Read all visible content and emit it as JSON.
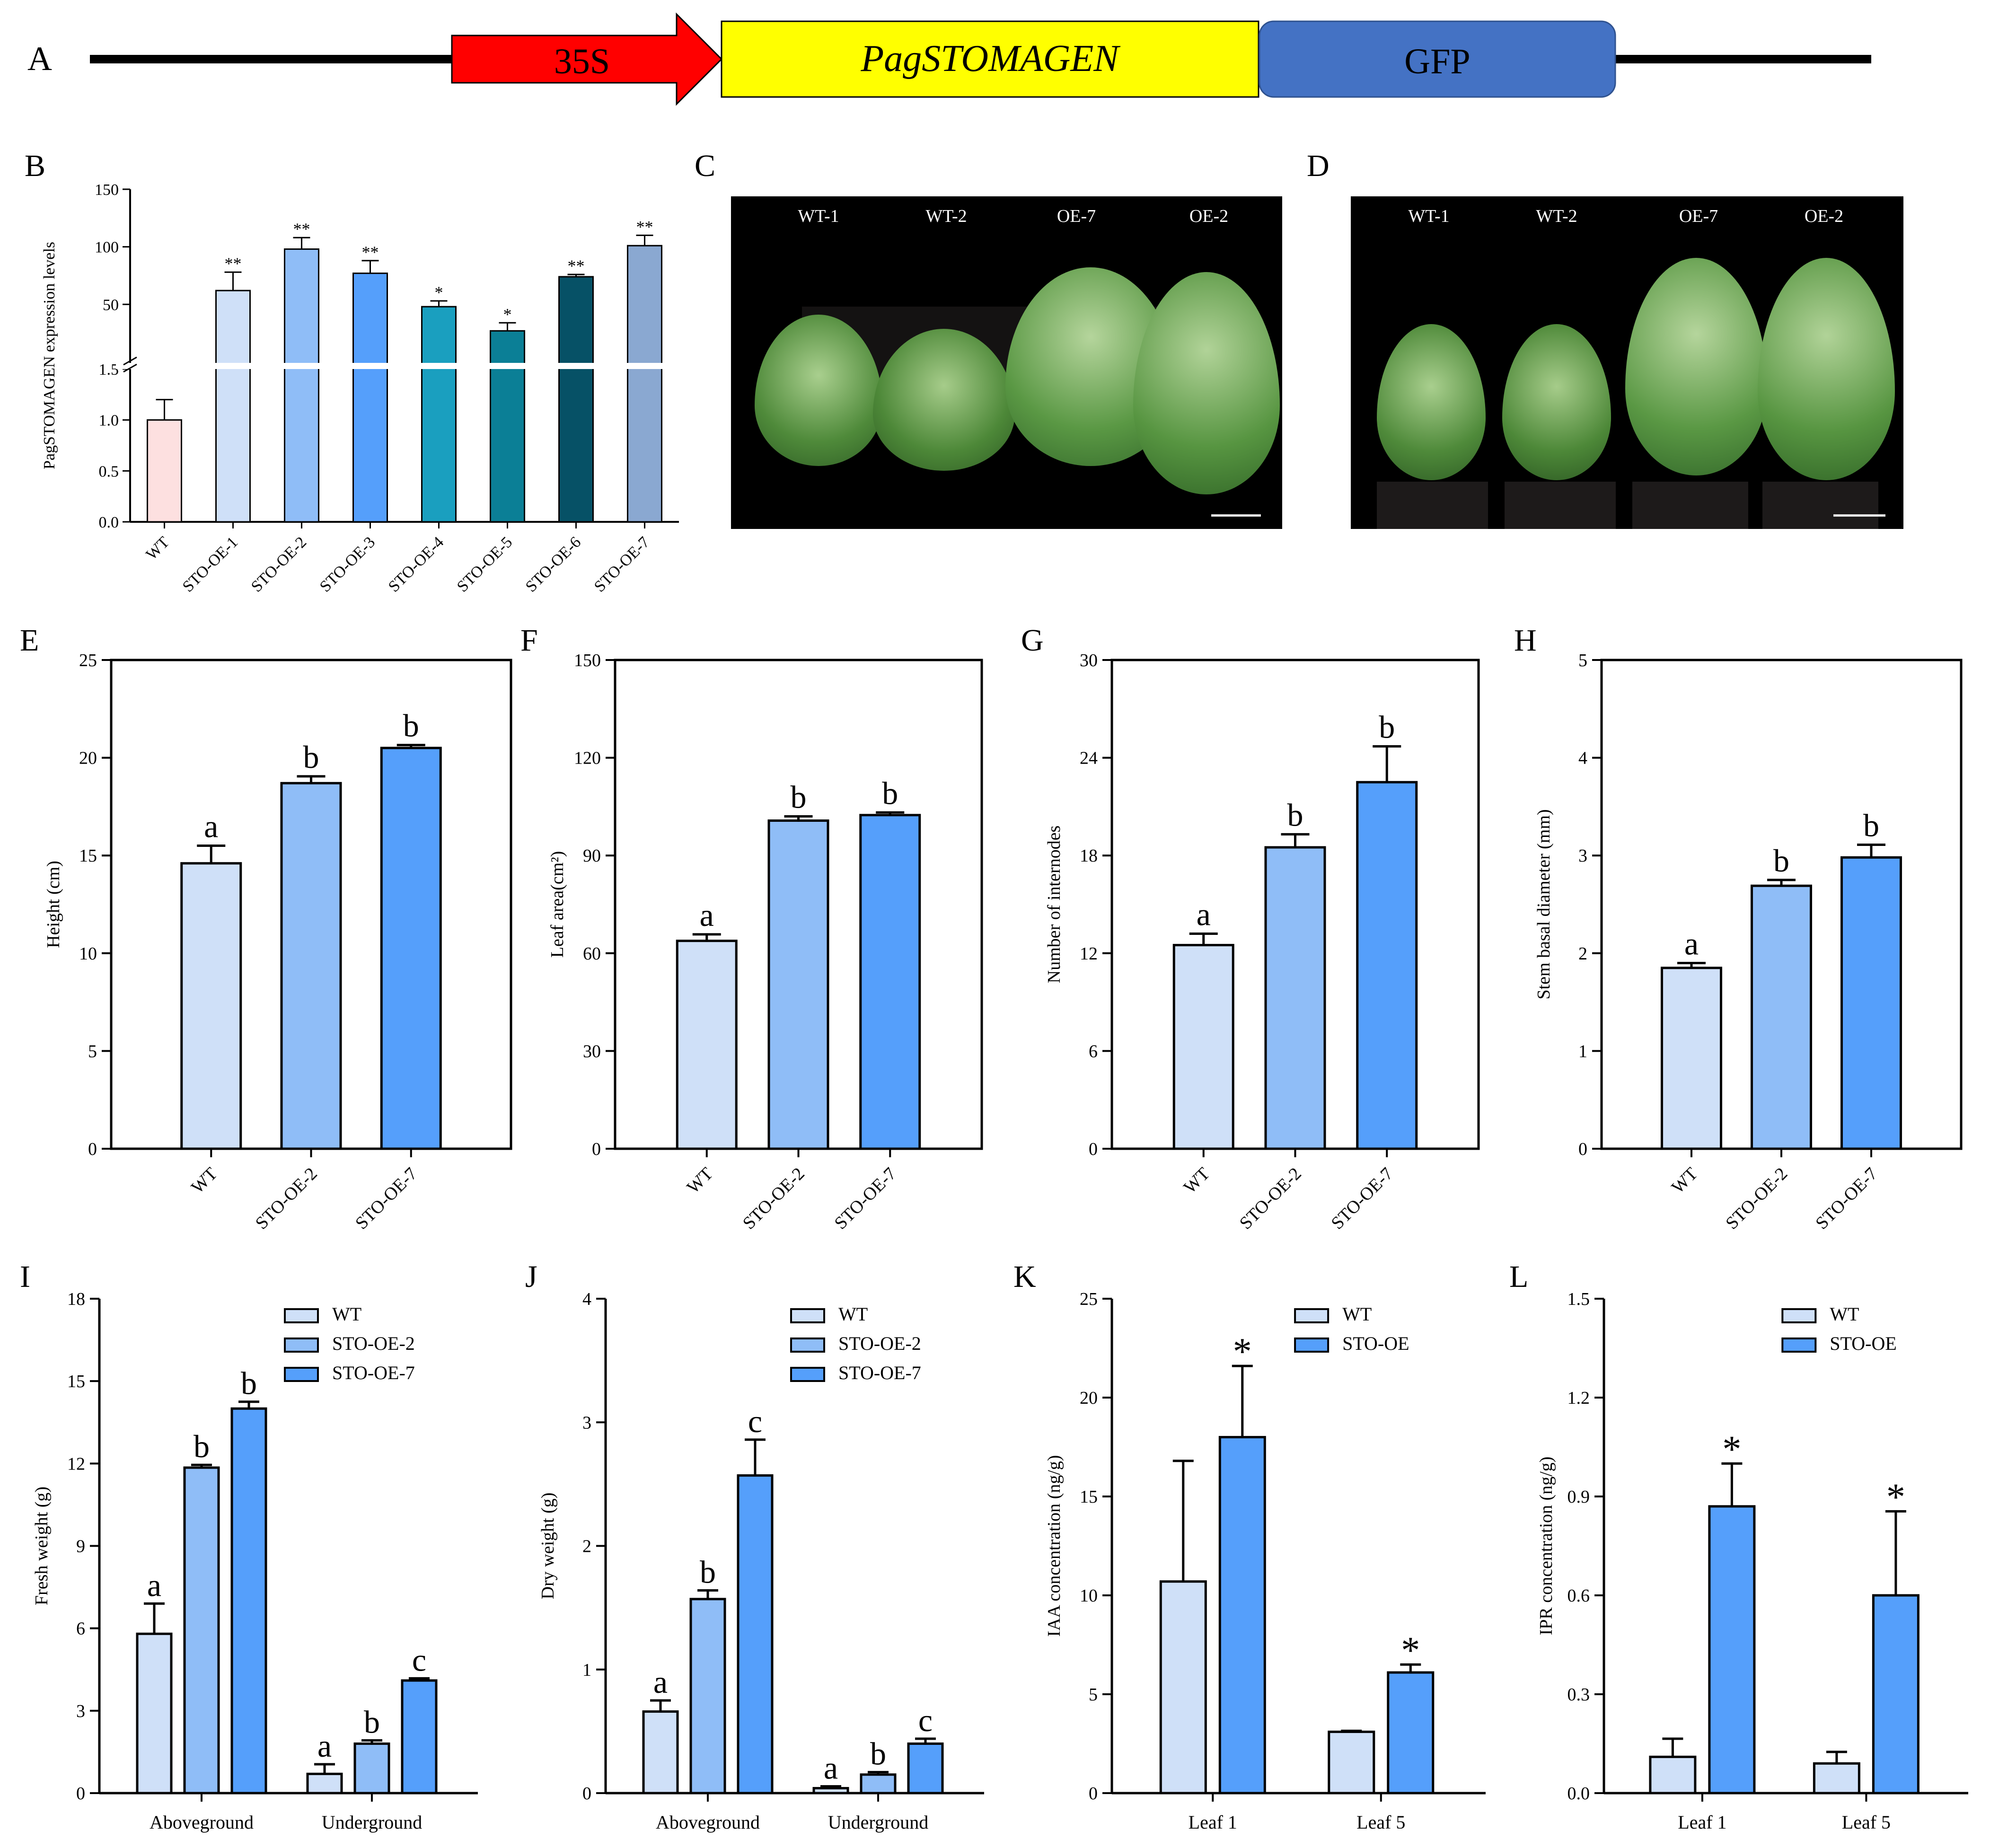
{
  "panel_letters": {
    "A": "A",
    "B": "B",
    "C": "C",
    "D": "D",
    "E": "E",
    "F": "F",
    "G": "G",
    "H": "H",
    "I": "I",
    "J": "J",
    "K": "K",
    "L": "L"
  },
  "construct": {
    "promoter": "35S",
    "gene": "PagSTOMAGEN",
    "tag": "GFP",
    "colors": {
      "promoter": "#ff0000",
      "gene": "#ffff00",
      "tag": "#4472c4"
    }
  },
  "photos": {
    "C": {
      "labels": [
        "WT-1",
        "WT-2",
        "OE-7",
        "OE-2"
      ]
    },
    "D": {
      "labels": [
        "WT-1",
        "WT-2",
        "OE-7",
        "OE-2"
      ]
    }
  },
  "colors": {
    "wt": "#cfe0f8",
    "oe2": "#8fbdf7",
    "oe7": "#559ffb"
  },
  "chart_data": [
    {
      "id": "B",
      "type": "bar",
      "ylabel": "PagSTOMAGEN expression levels",
      "axis_break": true,
      "lower_ticks": [
        "0.0",
        "0.5",
        "1.0",
        "1.5"
      ],
      "upper_ticks": [
        "50",
        "100",
        "150"
      ],
      "categories": [
        "WT",
        "STO-OE-1",
        "STO-OE-2",
        "STO-OE-3",
        "STO-OE-4",
        "STO-OE-5",
        "STO-OE-6",
        "STO-OE-7"
      ],
      "values": [
        1.0,
        62,
        98,
        77,
        48,
        27,
        74,
        101
      ],
      "errors": [
        0.2,
        16,
        10,
        11,
        5,
        7,
        2,
        9
      ],
      "significance": [
        "",
        "**",
        "**",
        "**",
        "*",
        "*",
        "**",
        "**"
      ],
      "bar_colors": [
        "#fde0e0",
        "#cfe0f8",
        "#8fbdf7",
        "#559ffb",
        "#1a9fbf",
        "#0b7f96",
        "#065166",
        "#8aa8d1"
      ]
    },
    {
      "id": "E",
      "type": "bar",
      "ylabel": "Height (cm)",
      "ylim": [
        0,
        25
      ],
      "ticks": [
        0,
        5,
        10,
        15,
        20,
        25
      ],
      "categories": [
        "WT",
        "STO-OE-2",
        "STO-OE-7"
      ],
      "values": [
        14.6,
        18.7,
        20.5
      ],
      "errors": [
        0.9,
        0.35,
        0.15
      ],
      "letters": [
        "a",
        "b",
        "b"
      ]
    },
    {
      "id": "F",
      "type": "bar",
      "ylabel": "Leaf area(cm²)",
      "ylim": [
        0,
        150
      ],
      "ticks": [
        0,
        30,
        60,
        90,
        120,
        150
      ],
      "categories": [
        "WT",
        "STO-OE-2",
        "STO-OE-7"
      ],
      "values": [
        63.8,
        100.7,
        102.4
      ],
      "errors": [
        2.0,
        1.3,
        0.8
      ],
      "letters": [
        "a",
        "b",
        "b"
      ]
    },
    {
      "id": "G",
      "type": "bar",
      "ylabel": "Number of internodes",
      "ylim": [
        0,
        30
      ],
      "ticks": [
        0,
        6,
        12,
        18,
        24,
        30
      ],
      "categories": [
        "WT",
        "STO-OE-2",
        "STO-OE-7"
      ],
      "values": [
        12.5,
        18.5,
        22.5
      ],
      "errors": [
        0.7,
        0.8,
        2.2
      ],
      "letters": [
        "a",
        "b",
        "b"
      ]
    },
    {
      "id": "H",
      "type": "bar",
      "ylabel": "Stem basal diameter (mm)",
      "ylim": [
        0,
        5
      ],
      "ticks": [
        0,
        1,
        2,
        3,
        4,
        5
      ],
      "categories": [
        "WT",
        "STO-OE-2",
        "STO-OE-7"
      ],
      "values": [
        1.85,
        2.69,
        2.98
      ],
      "errors": [
        0.05,
        0.06,
        0.13
      ],
      "letters": [
        "a",
        "b",
        "b"
      ]
    },
    {
      "id": "I",
      "type": "bar",
      "ylabel": "Fresh weight (g)",
      "ylim": [
        0,
        18
      ],
      "ticks": [
        0,
        3,
        6,
        9,
        12,
        15,
        18
      ],
      "categories": [
        "Aboveground",
        "Underground"
      ],
      "legend": [
        "WT",
        "STO-OE-2",
        "STO-OE-7"
      ],
      "series": [
        {
          "name": "WT",
          "values": [
            5.8,
            0.7
          ],
          "errors": [
            1.1,
            0.35
          ],
          "letters": [
            "a",
            "a"
          ]
        },
        {
          "name": "STO-OE-2",
          "values": [
            11.85,
            1.8
          ],
          "errors": [
            0.1,
            0.12
          ],
          "letters": [
            "b",
            "b"
          ]
        },
        {
          "name": "STO-OE-7",
          "values": [
            14.0,
            4.1
          ],
          "errors": [
            0.25,
            0.08
          ],
          "letters": [
            "b",
            "c"
          ]
        }
      ]
    },
    {
      "id": "J",
      "type": "bar",
      "ylabel": "Dry weight (g)",
      "ylim": [
        0,
        4
      ],
      "ticks": [
        0,
        1,
        2,
        3,
        4
      ],
      "categories": [
        "Aboveground",
        "Underground"
      ],
      "legend": [
        "WT",
        "STO-OE-2",
        "STO-OE-7"
      ],
      "series": [
        {
          "name": "WT",
          "values": [
            0.66,
            0.04
          ],
          "errors": [
            0.09,
            0.015
          ],
          "letters": [
            "a",
            "a"
          ]
        },
        {
          "name": "STO-OE-2",
          "values": [
            1.57,
            0.15
          ],
          "errors": [
            0.07,
            0.02
          ],
          "letters": [
            "b",
            "b"
          ]
        },
        {
          "name": "STO-OE-7",
          "values": [
            2.57,
            0.4
          ],
          "errors": [
            0.29,
            0.04
          ],
          "letters": [
            "c",
            "c"
          ]
        }
      ]
    },
    {
      "id": "K",
      "type": "bar",
      "ylabel": "IAA concentration (ng/g)",
      "ylim": [
        0,
        25
      ],
      "ticks": [
        0,
        5,
        10,
        15,
        20,
        25
      ],
      "categories": [
        "Leaf 1",
        "Leaf 5"
      ],
      "legend": [
        "WT",
        "STO-OE"
      ],
      "series": [
        {
          "name": "WT",
          "values": [
            10.7,
            3.1
          ],
          "errors": [
            6.1,
            0.05
          ],
          "letters": [
            "",
            ""
          ]
        },
        {
          "name": "STO-OE",
          "values": [
            18.0,
            6.1
          ],
          "errors": [
            3.6,
            0.4
          ],
          "letters": [
            "*",
            "*"
          ]
        }
      ]
    },
    {
      "id": "L",
      "type": "bar",
      "ylabel": "IPR concentration (ng/g)",
      "ylim": [
        0,
        1.5
      ],
      "ticks": [
        "0.0",
        "0.3",
        "0.6",
        "0.9",
        "1.2",
        "1.5"
      ],
      "categories": [
        "Leaf 1",
        "Leaf 5"
      ],
      "legend": [
        "WT",
        "STO-OE"
      ],
      "series": [
        {
          "name": "WT",
          "values": [
            0.11,
            0.09
          ],
          "errors": [
            0.055,
            0.035
          ],
          "letters": [
            "",
            ""
          ]
        },
        {
          "name": "STO-OE",
          "values": [
            0.87,
            0.6
          ],
          "errors": [
            0.13,
            0.255
          ],
          "letters": [
            "*",
            "*"
          ]
        }
      ]
    }
  ]
}
